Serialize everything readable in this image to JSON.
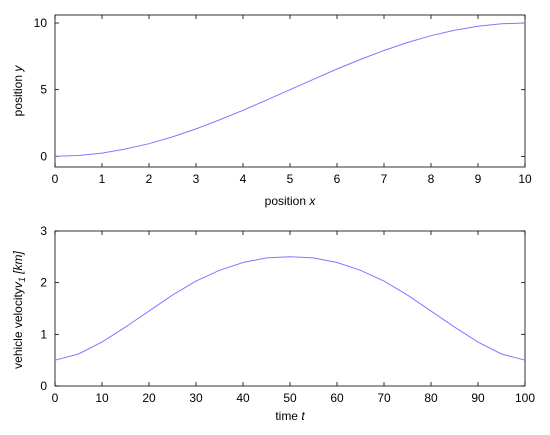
{
  "chart_data": [
    {
      "type": "line",
      "xlabel": "position",
      "xlabel_var": "x",
      "ylabel": "position",
      "ylabel_var": "y",
      "xlim": [
        0,
        10
      ],
      "ylim": [
        -0.8,
        10.6
      ],
      "xticks": [
        0,
        1,
        2,
        3,
        4,
        5,
        6,
        7,
        8,
        9,
        10
      ],
      "yticks": [
        0,
        5,
        10
      ],
      "grid": false,
      "color": "#7b7bff",
      "series": [
        {
          "x": [
            0,
            0.5,
            1,
            1.5,
            2,
            2.5,
            3,
            3.5,
            4,
            4.5,
            5,
            5.5,
            6,
            6.5,
            7,
            7.5,
            8,
            8.5,
            9,
            9.5,
            10
          ],
          "y": [
            0,
            0.06,
            0.24,
            0.55,
            0.95,
            1.46,
            2.06,
            2.73,
            3.45,
            4.22,
            5.0,
            5.78,
            6.55,
            7.27,
            7.94,
            8.54,
            9.05,
            9.45,
            9.76,
            9.94,
            10.0
          ]
        }
      ]
    },
    {
      "type": "line",
      "xlabel": "time",
      "xlabel_var": "t",
      "ylabel": "vehicle velocity",
      "ylabel_var": "v",
      "ylabel_sub": "1",
      "ylabel_unit": " [km]",
      "xlim": [
        0,
        100
      ],
      "ylim": [
        0,
        3
      ],
      "xticks": [
        0,
        10,
        20,
        30,
        40,
        50,
        60,
        70,
        80,
        90,
        100
      ],
      "yticks": [
        0,
        1,
        2,
        3
      ],
      "grid": false,
      "color": "#7b7bff",
      "series": [
        {
          "x": [
            0,
            5,
            10,
            15,
            20,
            25,
            30,
            35,
            40,
            45,
            50,
            55,
            60,
            65,
            70,
            75,
            80,
            85,
            90,
            95,
            100
          ],
          "y": [
            0.5,
            0.62,
            0.85,
            1.14,
            1.45,
            1.76,
            2.03,
            2.24,
            2.39,
            2.48,
            2.5,
            2.48,
            2.39,
            2.24,
            2.03,
            1.76,
            1.45,
            1.14,
            0.85,
            0.62,
            0.5
          ]
        }
      ]
    }
  ]
}
